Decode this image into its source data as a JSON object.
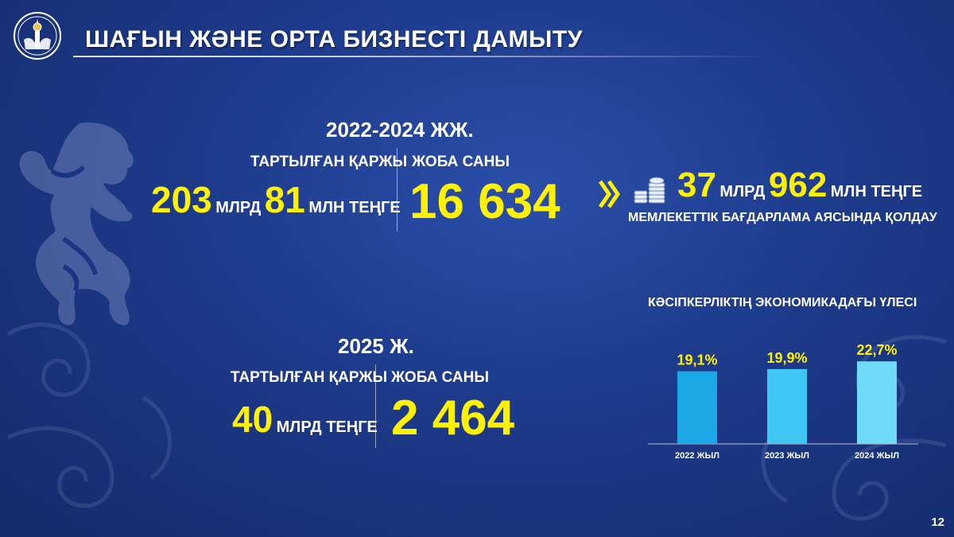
{
  "header": {
    "title": "ШАҒЫН ЖӘНЕ ОРТА БИЗНЕСТІ ДАМЫТУ"
  },
  "period1": {
    "title": "2022-2024 ЖЖ.",
    "funds_label": "ТАРТЫЛҒАН ҚАРЖЫ",
    "funds_num1": "203",
    "funds_unit1": "МЛРД",
    "funds_num2": "81",
    "funds_unit2": "МЛН ТЕҢГЕ",
    "projects_label": "ЖОБА САНЫ",
    "projects_value": "16 634"
  },
  "period2": {
    "title": "2025 Ж.",
    "funds_label": "ТАРТЫЛҒАН ҚАРЖЫ",
    "funds_num": "40",
    "funds_unit": "МЛРД ТЕҢГЕ",
    "projects_label": "ЖОБА САНЫ",
    "projects_value": "2 464"
  },
  "support": {
    "num1": "37",
    "unit1": "МЛРД",
    "num2": "962",
    "unit2": "МЛН ТЕҢГЕ",
    "caption": "МЕМЛЕКЕТТІК БАҒДАРЛАМА АЯСЫНДА ҚОЛДАУ",
    "icons": [
      "chevron-right-icon",
      "coins-icon"
    ]
  },
  "chart_data": {
    "type": "bar",
    "title": "КӘСІПКЕРЛІКТІҢ ЭКОНОМИКАДАҒЫ ҮЛЕСІ",
    "categories": [
      "2022 ЖЫЛ",
      "2023 ЖЫЛ",
      "2024 ЖЫЛ"
    ],
    "values": [
      19.1,
      19.9,
      22.7
    ],
    "value_labels": [
      "19,1%",
      "19,9%",
      "22,7%"
    ],
    "colors": [
      "#1aa8e6",
      "#3fc6f2",
      "#6fd9f8"
    ],
    "xlabel": "",
    "ylabel": "",
    "ylim": [
      0,
      25
    ]
  },
  "colors": {
    "accent": "#fff200",
    "background": "#1d3a8a"
  },
  "page_number": "12"
}
